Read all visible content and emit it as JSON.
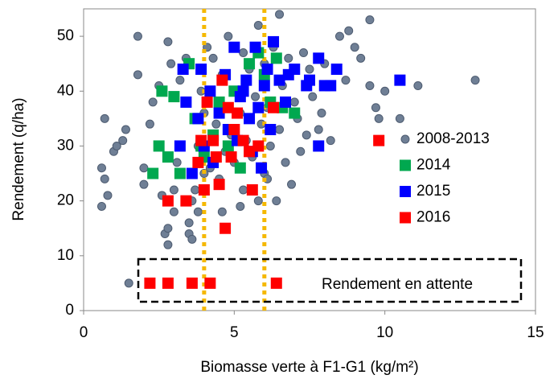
{
  "chart_data": {
    "type": "scatter",
    "xlabel": "Biomasse verte à F1-G1 (kg/m²)",
    "ylabel": "Rendement (q/ha)",
    "xlim": [
      0,
      15
    ],
    "ylim": [
      0,
      55
    ],
    "xticks": [
      0,
      5,
      10,
      15
    ],
    "yticks": [
      0,
      10,
      20,
      30,
      40,
      50
    ],
    "vlines": [
      4,
      6
    ],
    "vline_color": "#f5b800",
    "annotation": "Rendement en attente",
    "legend": "right",
    "series": [
      {
        "name": "2008-2013",
        "color": "#6f7f95",
        "marker": "circle",
        "x": [
          0.6,
          0.6,
          0.7,
          0.7,
          0.8,
          1,
          1.1,
          1.3,
          1.4,
          1.5,
          1.8,
          1.8,
          2,
          2,
          2.2,
          2.3,
          2.5,
          2.6,
          2.7,
          2.8,
          2.8,
          2.8,
          2.9,
          3,
          3,
          3.1,
          3.2,
          3.3,
          3.4,
          3.5,
          3.5,
          3.6,
          3.6,
          3.7,
          3.8,
          3.9,
          4,
          4,
          4.1,
          4.2,
          4.3,
          4.4,
          4.5,
          4.5,
          4.6,
          4.7,
          4.8,
          4.9,
          5,
          5.1,
          5.2,
          5.3,
          5.3,
          5.4,
          5.5,
          5.6,
          5.7,
          5.8,
          5.9,
          6,
          6,
          6.1,
          6.2,
          6.3,
          6.4,
          6.5,
          6.5,
          6.6,
          6.7,
          6.8,
          6.9,
          7,
          7.1,
          7.2,
          7.3,
          7.4,
          7.5,
          7.6,
          7.8,
          7.9,
          8,
          8.2,
          8.5,
          8.7,
          8.8,
          9,
          9.2,
          9.5,
          9.5,
          9.7,
          9.8,
          10,
          10.5,
          11.1,
          13,
          5.8,
          4.6,
          3.8,
          5.2,
          6.1
        ],
        "values": [
          19,
          26,
          24,
          35,
          21,
          29,
          30,
          31,
          33,
          5,
          50,
          43,
          26,
          23,
          34,
          38,
          41,
          21,
          14,
          12,
          15,
          49,
          45,
          22,
          18,
          27,
          42,
          44,
          46,
          16,
          14,
          20,
          13,
          22,
          30,
          40,
          25,
          36,
          48,
          26,
          46,
          34,
          38,
          24,
          43,
          29,
          50,
          32,
          27,
          40,
          36,
          47,
          22,
          31,
          44,
          28,
          39,
          52,
          34,
          45,
          25,
          37,
          30,
          48,
          20,
          54,
          33,
          41,
          27,
          46,
          23,
          38,
          35,
          29,
          47,
          32,
          44,
          39,
          33,
          36,
          45,
          31,
          50,
          42,
          51,
          48,
          46,
          53,
          41,
          37,
          35,
          40,
          35,
          41,
          42,
          20,
          18,
          18,
          19,
          24
        ]
      },
      {
        "name": "2014",
        "color": "#00a84f",
        "marker": "square",
        "x": [
          2.6,
          2.5,
          2.8,
          3,
          3.2,
          3.5,
          3.7,
          4,
          4.3,
          4.5,
          4.8,
          5,
          5.2,
          5.5,
          5.8,
          6,
          6.2,
          6.4,
          6.6,
          7,
          2.3,
          3.9
        ],
        "values": [
          40,
          30,
          28,
          39,
          25,
          45,
          35,
          28,
          32,
          38,
          30,
          40,
          26,
          45,
          47,
          43,
          38,
          46,
          37,
          36,
          25,
          30
        ]
      },
      {
        "name": "2015",
        "color": "#0000ff",
        "marker": "square",
        "x": [
          3.2,
          3.3,
          3.4,
          3.6,
          3.8,
          3.9,
          4,
          4.2,
          4.3,
          4.5,
          4.7,
          4.8,
          5,
          5.1,
          5.2,
          5.4,
          5.5,
          5.6,
          5.7,
          5.8,
          5.9,
          6,
          6.1,
          6.2,
          6.3,
          6.5,
          6.7,
          6.8,
          7,
          7.4,
          7.5,
          7.8,
          7.8,
          8,
          8.2,
          8.4,
          10.5,
          5.3
        ],
        "values": [
          30,
          44,
          38,
          25,
          35,
          44,
          30,
          40,
          27,
          36,
          43,
          33,
          48,
          31,
          39,
          42,
          35,
          29,
          48,
          37,
          26,
          41,
          44,
          33,
          49,
          42,
          38,
          43,
          44,
          41,
          42,
          30,
          46,
          41,
          41,
          44,
          42,
          40
        ]
      },
      {
        "name": "2016",
        "color": "#ff0000",
        "marker": "square",
        "x": [
          2.2,
          2.8,
          3.6,
          4.2,
          6.4,
          2.8,
          3.4,
          3.8,
          4,
          4.1,
          4.3,
          4.5,
          4.6,
          4.7,
          4.8,
          4.9,
          5,
          5.1,
          5.3,
          5.5,
          5.6,
          5.8,
          6.3,
          9.8,
          3.9,
          4.4
        ],
        "values": [
          5,
          5,
          5,
          5,
          5,
          20,
          20,
          27,
          22,
          38,
          31,
          23,
          42,
          15,
          37,
          28,
          33,
          36,
          31,
          29,
          22,
          30,
          37,
          31,
          31,
          28
        ]
      }
    ]
  }
}
